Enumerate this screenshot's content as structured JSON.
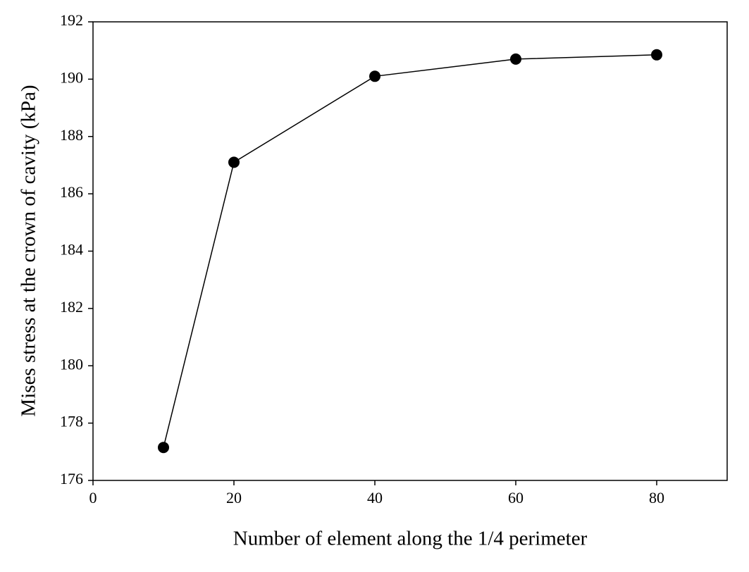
{
  "chart_data": {
    "type": "line",
    "x_label": "Number of element along the 1/4 perimeter",
    "y_label": "Mises stress at the crown of cavity (kPa)",
    "x": [
      10,
      20,
      40,
      60,
      80
    ],
    "series": [
      {
        "color": "#000000",
        "values": [
          177.15,
          187.1,
          190.1,
          190.7,
          190.85
        ]
      }
    ],
    "xlim": [
      0,
      90
    ],
    "xticks": [
      0,
      20,
      40,
      60,
      80
    ],
    "ylim": [
      176,
      192
    ],
    "yticks": [
      176,
      178,
      180,
      182,
      184,
      186,
      188,
      190,
      192
    ],
    "grid": false
  }
}
